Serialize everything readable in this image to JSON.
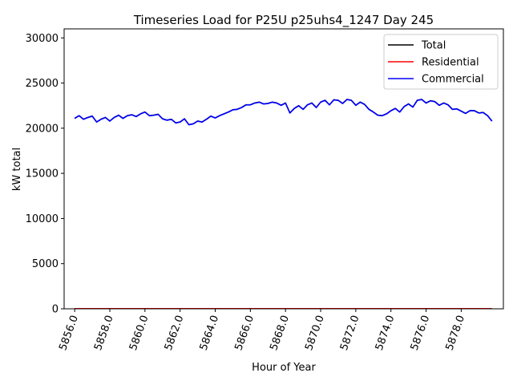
{
  "chart_data": {
    "type": "line",
    "title": "Timeseries Load for P25U p25uhs4_1247  Day 245",
    "xlabel": "Hour of Year",
    "ylabel": "kW total",
    "xlim": [
      5855.4,
      5880.4
    ],
    "ylim": [
      0,
      31000
    ],
    "x_ticks": [
      5856,
      5858,
      5860,
      5862,
      5864,
      5866,
      5868,
      5870,
      5872,
      5874,
      5876,
      5878
    ],
    "x_tick_labels": [
      "5856.0",
      "5858.0",
      "5860.0",
      "5862.0",
      "5864.0",
      "5866.0",
      "5868.0",
      "5870.0",
      "5872.0",
      "5874.0",
      "5876.0",
      "5878.0"
    ],
    "y_ticks": [
      0,
      5000,
      10000,
      15000,
      20000,
      25000,
      30000
    ],
    "y_tick_labels": [
      "0",
      "5000",
      "10000",
      "15000",
      "20000",
      "25000",
      "30000"
    ],
    "x_start": 5856,
    "x_step": 0.25,
    "legend_position": "upper-right",
    "series": [
      {
        "name": "Total",
        "color": "#000000",
        "values": [
          21100,
          21400,
          21000,
          21200,
          21350,
          20700,
          21000,
          21200,
          20800,
          21200,
          21450,
          21100,
          21400,
          21500,
          21300,
          21600,
          21800,
          21400,
          21450,
          21550,
          21050,
          20900,
          21000,
          20600,
          20700,
          21050,
          20400,
          20500,
          20800,
          20700,
          21000,
          21350,
          21150,
          21400,
          21600,
          21800,
          22050,
          22100,
          22300,
          22600,
          22600,
          22800,
          22900,
          22700,
          22750,
          22900,
          22800,
          22550,
          22800,
          21700,
          22200,
          22500,
          22100,
          22600,
          22800,
          22300,
          22900,
          23100,
          22600,
          23150,
          23100,
          22750,
          23200,
          23100,
          22550,
          22900,
          22650,
          22100,
          21800,
          21450,
          21400,
          21600,
          21950,
          22200,
          21800,
          22400,
          22700,
          22350,
          23100,
          23200,
          22800,
          23050,
          22950,
          22550,
          22800,
          22600,
          22100,
          22150,
          21900,
          21650,
          21950,
          21950,
          21700,
          21750,
          21400,
          20800
        ]
      },
      {
        "name": "Residential",
        "color": "#ff0000",
        "values": [
          20,
          20,
          20,
          20,
          20,
          20,
          20,
          20,
          20,
          20,
          20,
          20,
          20,
          20,
          20,
          20,
          20,
          20,
          20,
          20,
          20,
          20,
          20,
          20,
          20,
          20,
          20,
          20,
          20,
          20,
          20,
          20,
          20,
          20,
          20,
          20,
          20,
          20,
          20,
          20,
          20,
          20,
          20,
          20,
          20,
          20,
          20,
          20,
          20,
          20,
          20,
          20,
          20,
          20,
          20,
          20,
          20,
          20,
          20,
          20,
          20,
          20,
          20,
          20,
          20,
          20,
          20,
          20,
          20,
          20,
          20,
          20,
          20,
          20,
          20,
          20,
          20,
          20,
          20,
          20,
          20,
          20,
          20,
          20,
          20,
          20,
          20,
          20,
          20,
          20,
          20,
          20,
          20,
          20,
          20,
          20
        ]
      },
      {
        "name": "Commercial",
        "color": "#0000ff",
        "values": [
          21080,
          21380,
          20980,
          21180,
          21330,
          20680,
          20980,
          21180,
          20780,
          21180,
          21430,
          21080,
          21380,
          21480,
          21280,
          21580,
          21780,
          21380,
          21430,
          21530,
          21030,
          20880,
          20980,
          20580,
          20680,
          21030,
          20380,
          20480,
          20780,
          20680,
          20980,
          21330,
          21130,
          21380,
          21580,
          21780,
          22030,
          22080,
          22280,
          22580,
          22580,
          22780,
          22880,
          22680,
          22730,
          22880,
          22780,
          22530,
          22780,
          21680,
          22180,
          22480,
          22080,
          22580,
          22780,
          22280,
          22880,
          23080,
          22580,
          23130,
          23080,
          22730,
          23180,
          23080,
          22530,
          22880,
          22630,
          22080,
          21780,
          21430,
          21380,
          21580,
          21930,
          22180,
          21780,
          22380,
          22680,
          22330,
          23080,
          23180,
          22780,
          23030,
          22930,
          22530,
          22780,
          22580,
          22080,
          22130,
          21880,
          21630,
          21930,
          21930,
          21680,
          21730,
          21380,
          20780
        ]
      }
    ]
  }
}
